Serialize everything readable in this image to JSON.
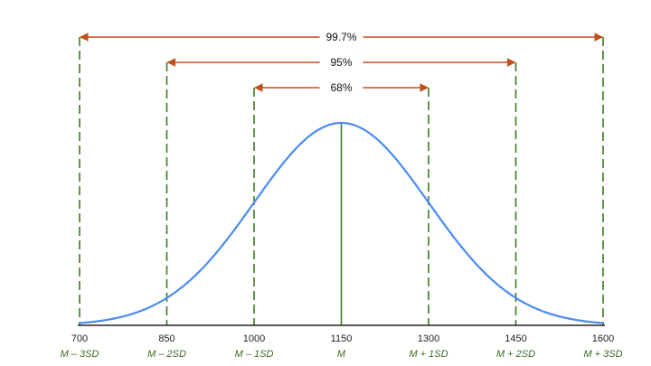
{
  "chart_data": {
    "type": "line",
    "title": "",
    "xlabel": "",
    "ylabel": "",
    "mean": 1150,
    "sd": 150,
    "xlim": [
      700,
      1600
    ],
    "x_ticks": [
      {
        "value": 700,
        "label": "700",
        "sublabel": "M – 3SD"
      },
      {
        "value": 850,
        "label": "850",
        "sublabel": "M – 2SD"
      },
      {
        "value": 1000,
        "label": "1000",
        "sublabel": "M – 1SD"
      },
      {
        "value": 1150,
        "label": "1150",
        "sublabel": "M"
      },
      {
        "value": 1300,
        "label": "1300",
        "sublabel": "M + 1SD"
      },
      {
        "value": 1450,
        "label": "1450",
        "sublabel": "M + 2SD"
      },
      {
        "value": 1600,
        "label": "1600",
        "sublabel": "M + 3SD"
      }
    ],
    "intervals": [
      {
        "from": 700,
        "to": 1600,
        "label": "99.7%"
      },
      {
        "from": 850,
        "to": 1450,
        "label": "95%"
      },
      {
        "from": 1000,
        "to": 1300,
        "label": "68%"
      }
    ],
    "series": [
      {
        "values_from": "normal_pdf",
        "mean": 1150,
        "sd": 150
      }
    ],
    "grid": false,
    "colors": {
      "curve": "#4a8cf0",
      "sd_lines": "#3d7a1f",
      "mean_line": "#3d7a1f",
      "arrows": "#c0501a",
      "axis": "#222222",
      "sd_text": "#3d6b1f"
    }
  }
}
